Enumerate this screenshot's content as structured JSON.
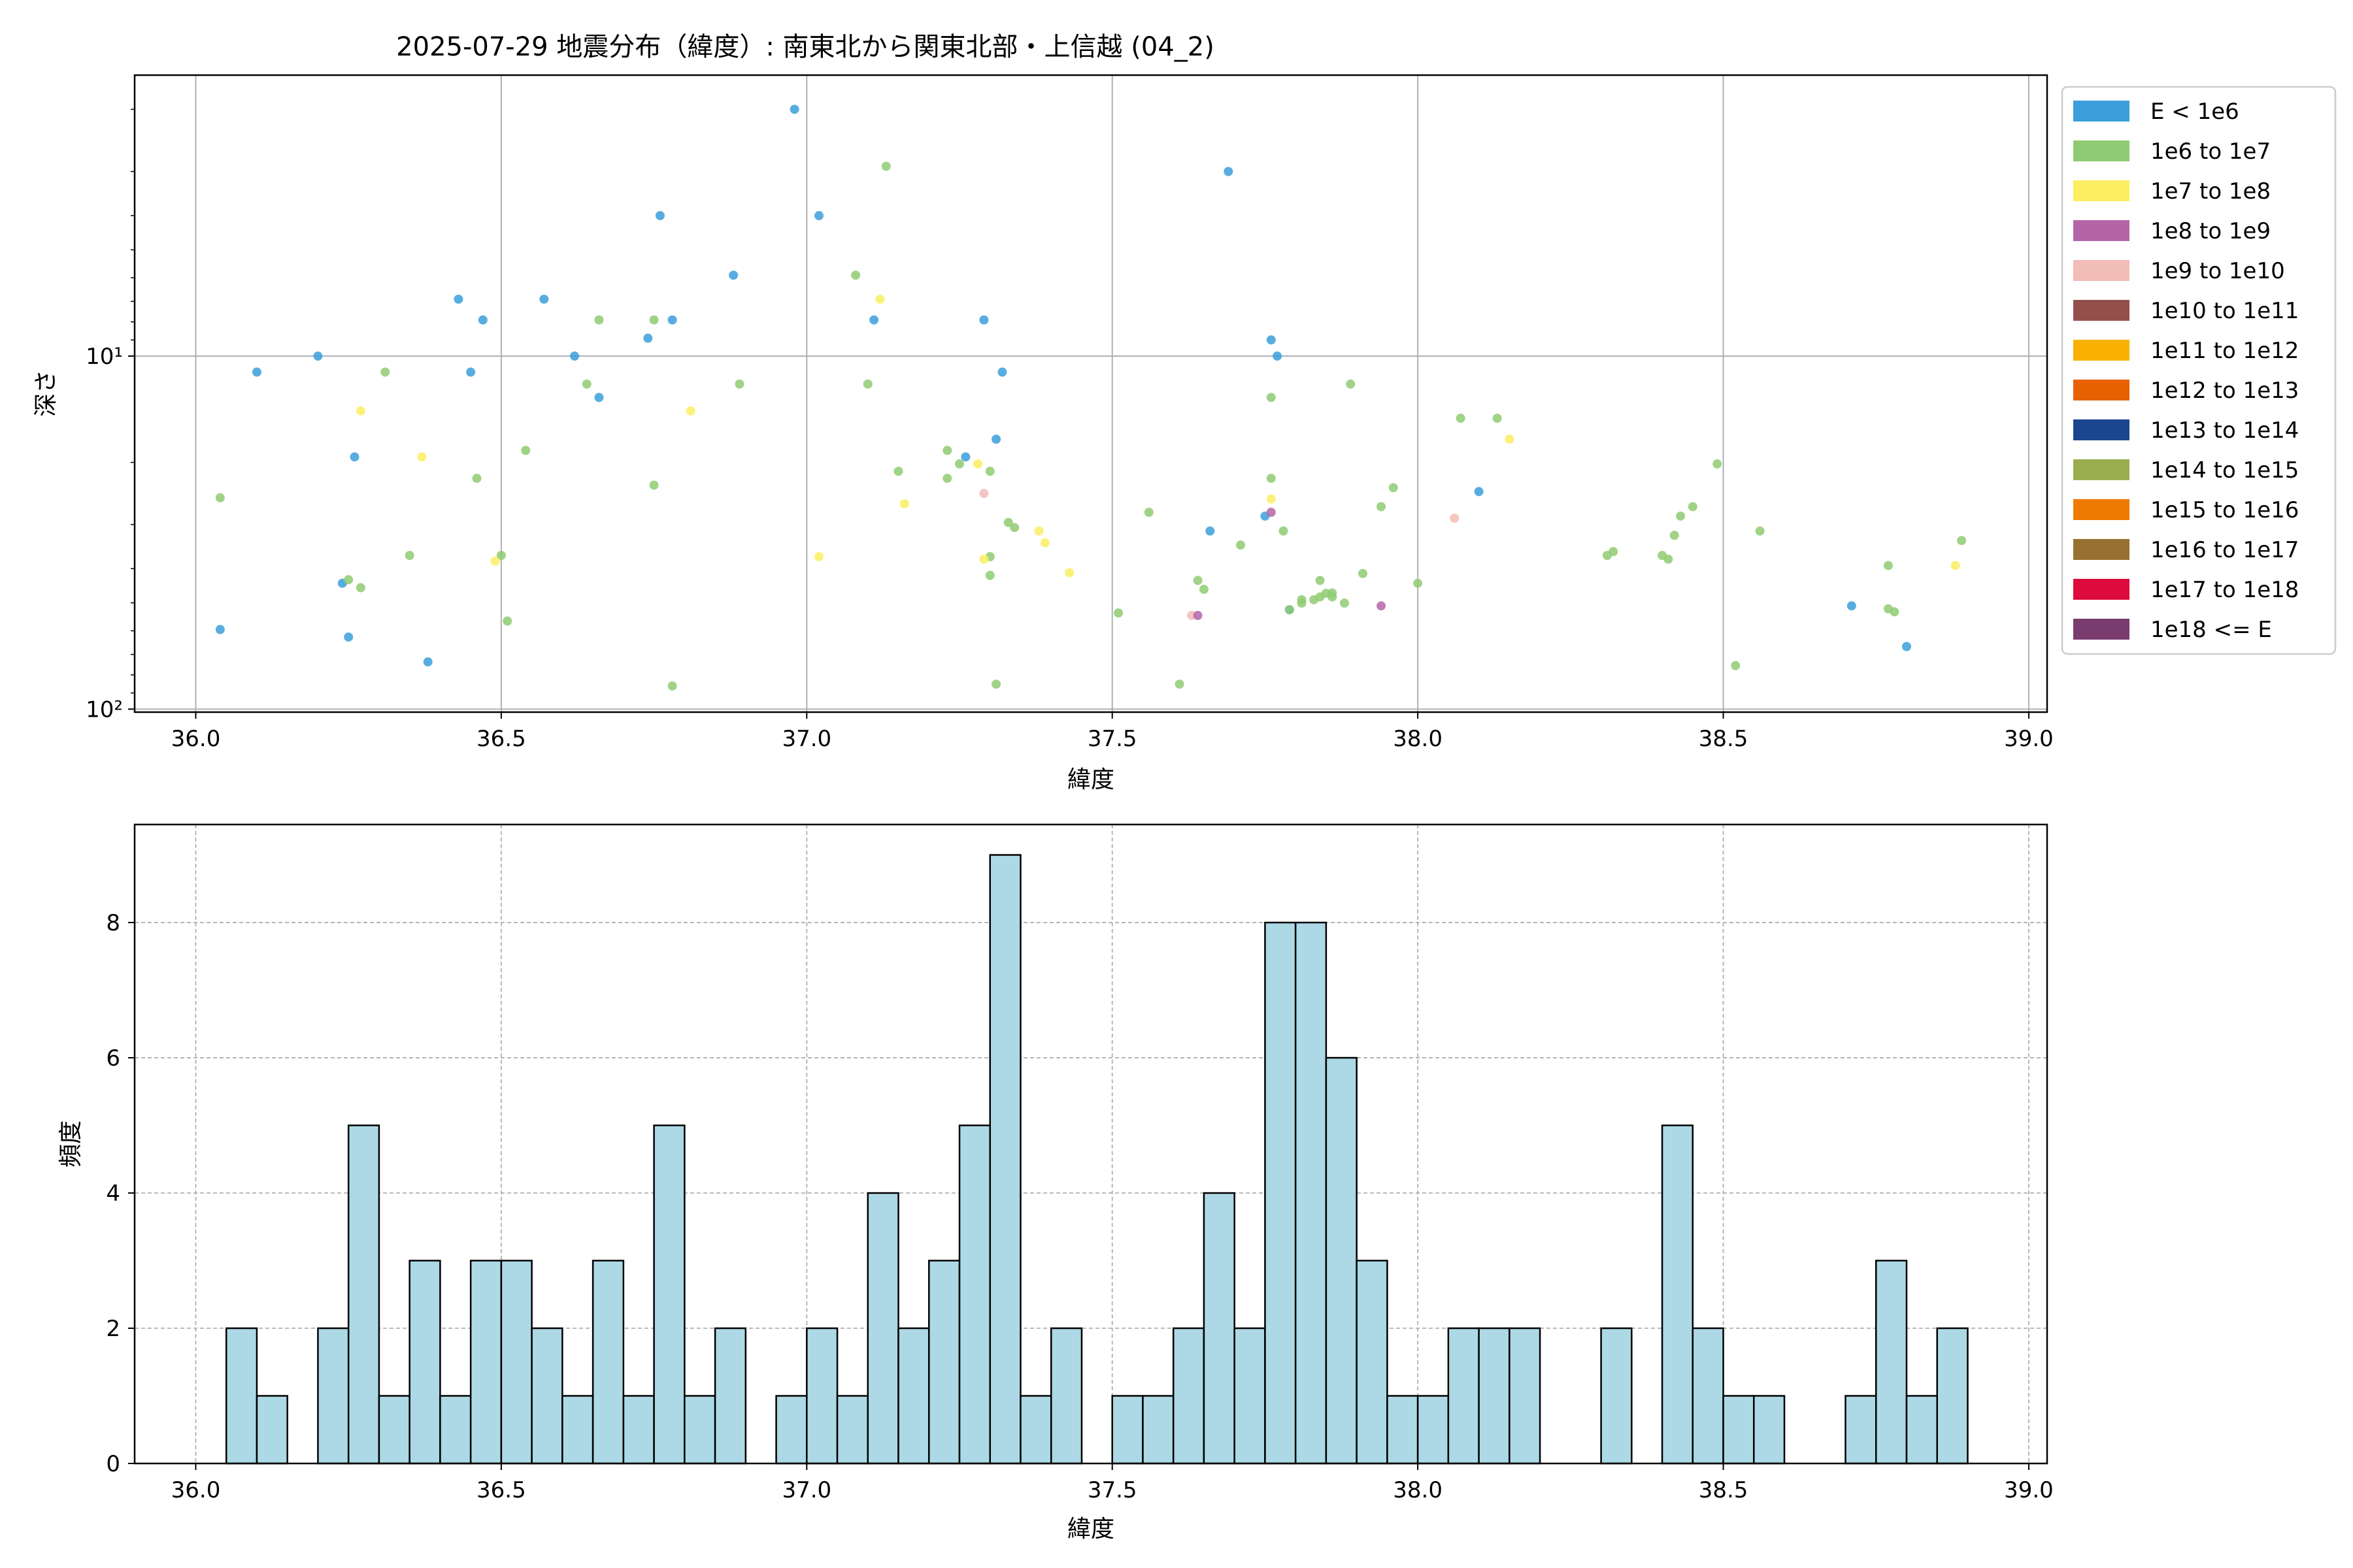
{
  "chart_data": [
    {
      "type": "scatter",
      "title": "2025-07-29 地震分布（緯度）: 南東北から関東北部・上信越 (04_2)",
      "xlabel": "緯度",
      "ylabel": "深さ",
      "xlim": [
        35.9,
        39.03
      ],
      "ylim": [
        102,
        1.6
      ],
      "yscale": "log",
      "y_inverted": true,
      "grid": true,
      "xticks": [
        "36.0",
        "36.5",
        "37.0",
        "37.5",
        "38.0",
        "38.5",
        "39.0"
      ],
      "xtick_values": [
        36.0,
        36.5,
        37.0,
        37.5,
        38.0,
        38.5,
        39.0
      ],
      "yticks": [
        "10¹",
        "10²"
      ],
      "ytick_values": [
        10,
        100
      ],
      "legend_position": "outside-right",
      "legend": [
        {
          "label": "E < 1e6",
          "color": "#3b9fdb"
        },
        {
          "label": "1e6 to 1e7",
          "color": "#8fcb72"
        },
        {
          "label": "1e7 to 1e8",
          "color": "#fcee60"
        },
        {
          "label": "1e8 to 1e9",
          "color": "#b565a7"
        },
        {
          "label": "1e9 to 1e10",
          "color": "#f2bcb7"
        },
        {
          "label": "1e10 to 1e11",
          "color": "#954f4b"
        },
        {
          "label": "1e11 to 1e12",
          "color": "#f8b100"
        },
        {
          "label": "1e12 to 1e13",
          "color": "#e86100"
        },
        {
          "label": "1e13 to 1e14",
          "color": "#1a4690"
        },
        {
          "label": "1e14 to 1e15",
          "color": "#9aae4f"
        },
        {
          "label": "1e15 to 1e16",
          "color": "#ef7a00"
        },
        {
          "label": "1e16 to 1e17",
          "color": "#967131"
        },
        {
          "label": "1e17 to 1e18",
          "color": "#dd0c3c"
        },
        {
          "label": "1e18 <= E",
          "color": "#7a3b6f"
        }
      ],
      "points": [
        {
          "x": 36.04,
          "y": 59.5,
          "c": 0
        },
        {
          "x": 36.1,
          "y": 11.1,
          "c": 0
        },
        {
          "x": 36.2,
          "y": 10.0,
          "c": 0
        },
        {
          "x": 36.24,
          "y": 44.0,
          "c": 0
        },
        {
          "x": 36.25,
          "y": 62.5,
          "c": 0
        },
        {
          "x": 36.26,
          "y": 19.3,
          "c": 0
        },
        {
          "x": 36.38,
          "y": 73.5,
          "c": 0
        },
        {
          "x": 36.43,
          "y": 6.9,
          "c": 0
        },
        {
          "x": 36.45,
          "y": 11.1,
          "c": 0
        },
        {
          "x": 36.47,
          "y": 7.9,
          "c": 0
        },
        {
          "x": 36.57,
          "y": 6.9,
          "c": 0
        },
        {
          "x": 36.62,
          "y": 10.0,
          "c": 0
        },
        {
          "x": 36.66,
          "y": 13.1,
          "c": 0
        },
        {
          "x": 36.74,
          "y": 8.9,
          "c": 0
        },
        {
          "x": 36.76,
          "y": 4.0,
          "c": 0
        },
        {
          "x": 36.78,
          "y": 7.9,
          "c": 0
        },
        {
          "x": 36.88,
          "y": 5.9,
          "c": 0
        },
        {
          "x": 36.98,
          "y": 2.0,
          "c": 0
        },
        {
          "x": 37.02,
          "y": 4.0,
          "c": 0
        },
        {
          "x": 37.11,
          "y": 7.9,
          "c": 0
        },
        {
          "x": 37.26,
          "y": 19.3,
          "c": 0
        },
        {
          "x": 37.29,
          "y": 7.9,
          "c": 0
        },
        {
          "x": 37.31,
          "y": 17.2,
          "c": 0
        },
        {
          "x": 37.32,
          "y": 11.1,
          "c": 0
        },
        {
          "x": 37.66,
          "y": 31.3,
          "c": 0
        },
        {
          "x": 37.69,
          "y": 3.0,
          "c": 0
        },
        {
          "x": 37.75,
          "y": 28.4,
          "c": 0
        },
        {
          "x": 37.76,
          "y": 9.0,
          "c": 0
        },
        {
          "x": 37.77,
          "y": 10.0,
          "c": 0
        },
        {
          "x": 37.79,
          "y": 52.3,
          "c": 0
        },
        {
          "x": 38.1,
          "y": 24.2,
          "c": 0
        },
        {
          "x": 38.71,
          "y": 51.0,
          "c": 0
        },
        {
          "x": 38.8,
          "y": 66.5,
          "c": 0
        },
        {
          "x": 36.04,
          "y": 25.2,
          "c": 1
        },
        {
          "x": 36.25,
          "y": 43.0,
          "c": 1
        },
        {
          "x": 36.27,
          "y": 45.3,
          "c": 1
        },
        {
          "x": 36.31,
          "y": 11.1,
          "c": 1
        },
        {
          "x": 36.35,
          "y": 36.7,
          "c": 1
        },
        {
          "x": 36.46,
          "y": 22.2,
          "c": 1
        },
        {
          "x": 36.5,
          "y": 36.7,
          "c": 1
        },
        {
          "x": 36.51,
          "y": 56.3,
          "c": 1
        },
        {
          "x": 36.54,
          "y": 18.5,
          "c": 1
        },
        {
          "x": 36.64,
          "y": 12.0,
          "c": 1
        },
        {
          "x": 36.66,
          "y": 7.9,
          "c": 1
        },
        {
          "x": 36.75,
          "y": 7.9,
          "c": 1
        },
        {
          "x": 36.75,
          "y": 23.2,
          "c": 1
        },
        {
          "x": 36.78,
          "y": 86.0,
          "c": 1
        },
        {
          "x": 36.89,
          "y": 12.0,
          "c": 1
        },
        {
          "x": 37.08,
          "y": 5.9,
          "c": 1
        },
        {
          "x": 37.1,
          "y": 12.0,
          "c": 1
        },
        {
          "x": 37.13,
          "y": 2.9,
          "c": 1
        },
        {
          "x": 37.15,
          "y": 21.2,
          "c": 1
        },
        {
          "x": 37.23,
          "y": 18.5,
          "c": 1
        },
        {
          "x": 37.23,
          "y": 22.2,
          "c": 1
        },
        {
          "x": 37.25,
          "y": 20.2,
          "c": 1
        },
        {
          "x": 37.3,
          "y": 21.2,
          "c": 1
        },
        {
          "x": 37.3,
          "y": 37.0,
          "c": 1
        },
        {
          "x": 37.3,
          "y": 41.8,
          "c": 1
        },
        {
          "x": 37.31,
          "y": 85.0,
          "c": 1
        },
        {
          "x": 37.33,
          "y": 29.6,
          "c": 1
        },
        {
          "x": 37.34,
          "y": 30.6,
          "c": 1
        },
        {
          "x": 37.51,
          "y": 53.4,
          "c": 1
        },
        {
          "x": 37.56,
          "y": 27.7,
          "c": 1
        },
        {
          "x": 37.61,
          "y": 85.0,
          "c": 1
        },
        {
          "x": 37.64,
          "y": 43.2,
          "c": 1
        },
        {
          "x": 37.65,
          "y": 45.8,
          "c": 1
        },
        {
          "x": 37.71,
          "y": 34.3,
          "c": 1
        },
        {
          "x": 37.76,
          "y": 13.1,
          "c": 1
        },
        {
          "x": 37.76,
          "y": 22.2,
          "c": 1
        },
        {
          "x": 37.78,
          "y": 31.3,
          "c": 1
        },
        {
          "x": 37.79,
          "y": 52.3,
          "c": 1
        },
        {
          "x": 37.81,
          "y": 49.0,
          "c": 1
        },
        {
          "x": 37.81,
          "y": 50.1,
          "c": 1
        },
        {
          "x": 37.83,
          "y": 49.0,
          "c": 1
        },
        {
          "x": 37.84,
          "y": 43.2,
          "c": 1
        },
        {
          "x": 37.84,
          "y": 48.1,
          "c": 1
        },
        {
          "x": 37.85,
          "y": 47.0,
          "c": 1
        },
        {
          "x": 37.86,
          "y": 48.1,
          "c": 1
        },
        {
          "x": 37.86,
          "y": 46.9,
          "c": 1
        },
        {
          "x": 37.88,
          "y": 50.1,
          "c": 1
        },
        {
          "x": 37.89,
          "y": 12.0,
          "c": 1
        },
        {
          "x": 37.91,
          "y": 41.3,
          "c": 1
        },
        {
          "x": 37.94,
          "y": 26.7,
          "c": 1
        },
        {
          "x": 37.96,
          "y": 23.6,
          "c": 1
        },
        {
          "x": 38.0,
          "y": 44.0,
          "c": 1
        },
        {
          "x": 38.07,
          "y": 15.0,
          "c": 1
        },
        {
          "x": 38.13,
          "y": 15.0,
          "c": 1
        },
        {
          "x": 38.31,
          "y": 36.7,
          "c": 1
        },
        {
          "x": 38.32,
          "y": 35.8,
          "c": 1
        },
        {
          "x": 38.4,
          "y": 36.7,
          "c": 1
        },
        {
          "x": 38.41,
          "y": 37.6,
          "c": 1
        },
        {
          "x": 38.42,
          "y": 32.2,
          "c": 1
        },
        {
          "x": 38.43,
          "y": 28.4,
          "c": 1
        },
        {
          "x": 38.45,
          "y": 26.7,
          "c": 1
        },
        {
          "x": 38.49,
          "y": 20.2,
          "c": 1
        },
        {
          "x": 38.52,
          "y": 75.3,
          "c": 1
        },
        {
          "x": 38.56,
          "y": 31.3,
          "c": 1
        },
        {
          "x": 38.77,
          "y": 39.2,
          "c": 1
        },
        {
          "x": 38.77,
          "y": 52.0,
          "c": 1
        },
        {
          "x": 38.78,
          "y": 53.0,
          "c": 1
        },
        {
          "x": 38.89,
          "y": 33.3,
          "c": 1
        },
        {
          "x": 36.27,
          "y": 14.3,
          "c": 2
        },
        {
          "x": 36.37,
          "y": 19.3,
          "c": 2
        },
        {
          "x": 36.49,
          "y": 38.1,
          "c": 2
        },
        {
          "x": 36.81,
          "y": 14.3,
          "c": 2
        },
        {
          "x": 37.02,
          "y": 37.0,
          "c": 2
        },
        {
          "x": 37.12,
          "y": 6.9,
          "c": 2
        },
        {
          "x": 37.16,
          "y": 26.2,
          "c": 2
        },
        {
          "x": 37.28,
          "y": 20.2,
          "c": 2
        },
        {
          "x": 37.29,
          "y": 37.6,
          "c": 2
        },
        {
          "x": 37.38,
          "y": 31.3,
          "c": 2
        },
        {
          "x": 37.39,
          "y": 33.8,
          "c": 2
        },
        {
          "x": 37.43,
          "y": 41.1,
          "c": 2
        },
        {
          "x": 37.76,
          "y": 25.4,
          "c": 2
        },
        {
          "x": 38.15,
          "y": 17.2,
          "c": 2
        },
        {
          "x": 38.88,
          "y": 39.2,
          "c": 2
        },
        {
          "x": 37.29,
          "y": 24.5,
          "c": 4
        },
        {
          "x": 37.63,
          "y": 54.3,
          "c": 4
        },
        {
          "x": 38.06,
          "y": 28.8,
          "c": 4
        },
        {
          "x": 37.64,
          "y": 54.3,
          "c": 3
        },
        {
          "x": 37.76,
          "y": 27.7,
          "c": 3
        },
        {
          "x": 37.94,
          "y": 51.0,
          "c": 3
        }
      ]
    },
    {
      "type": "bar",
      "xlabel": "緯度",
      "ylabel": "頻度",
      "xlim": [
        35.9,
        39.03
      ],
      "ylim": [
        0,
        9.45
      ],
      "grid": true,
      "xticks": [
        "36.0",
        "36.5",
        "37.0",
        "37.5",
        "38.0",
        "38.5",
        "39.0"
      ],
      "xtick_values": [
        36.0,
        36.5,
        37.0,
        37.5,
        38.0,
        38.5,
        39.0
      ],
      "yticks": [
        "0",
        "2",
        "4",
        "6",
        "8"
      ],
      "ytick_values": [
        0,
        2,
        4,
        6,
        8
      ],
      "bar_color": "#add8e6",
      "bin_start": 36.05,
      "bin_width": 0.05,
      "values": [
        2,
        1,
        0,
        2,
        5,
        1,
        3,
        1,
        3,
        3,
        2,
        1,
        3,
        1,
        5,
        1,
        2,
        0,
        1,
        2,
        1,
        4,
        2,
        3,
        5,
        9,
        1,
        2,
        0,
        1,
        1,
        2,
        4,
        2,
        8,
        8,
        6,
        3,
        1,
        1,
        2,
        2,
        2,
        0,
        0,
        2,
        0,
        5,
        2,
        1,
        1,
        0,
        0,
        1,
        3,
        1,
        2
      ]
    }
  ]
}
